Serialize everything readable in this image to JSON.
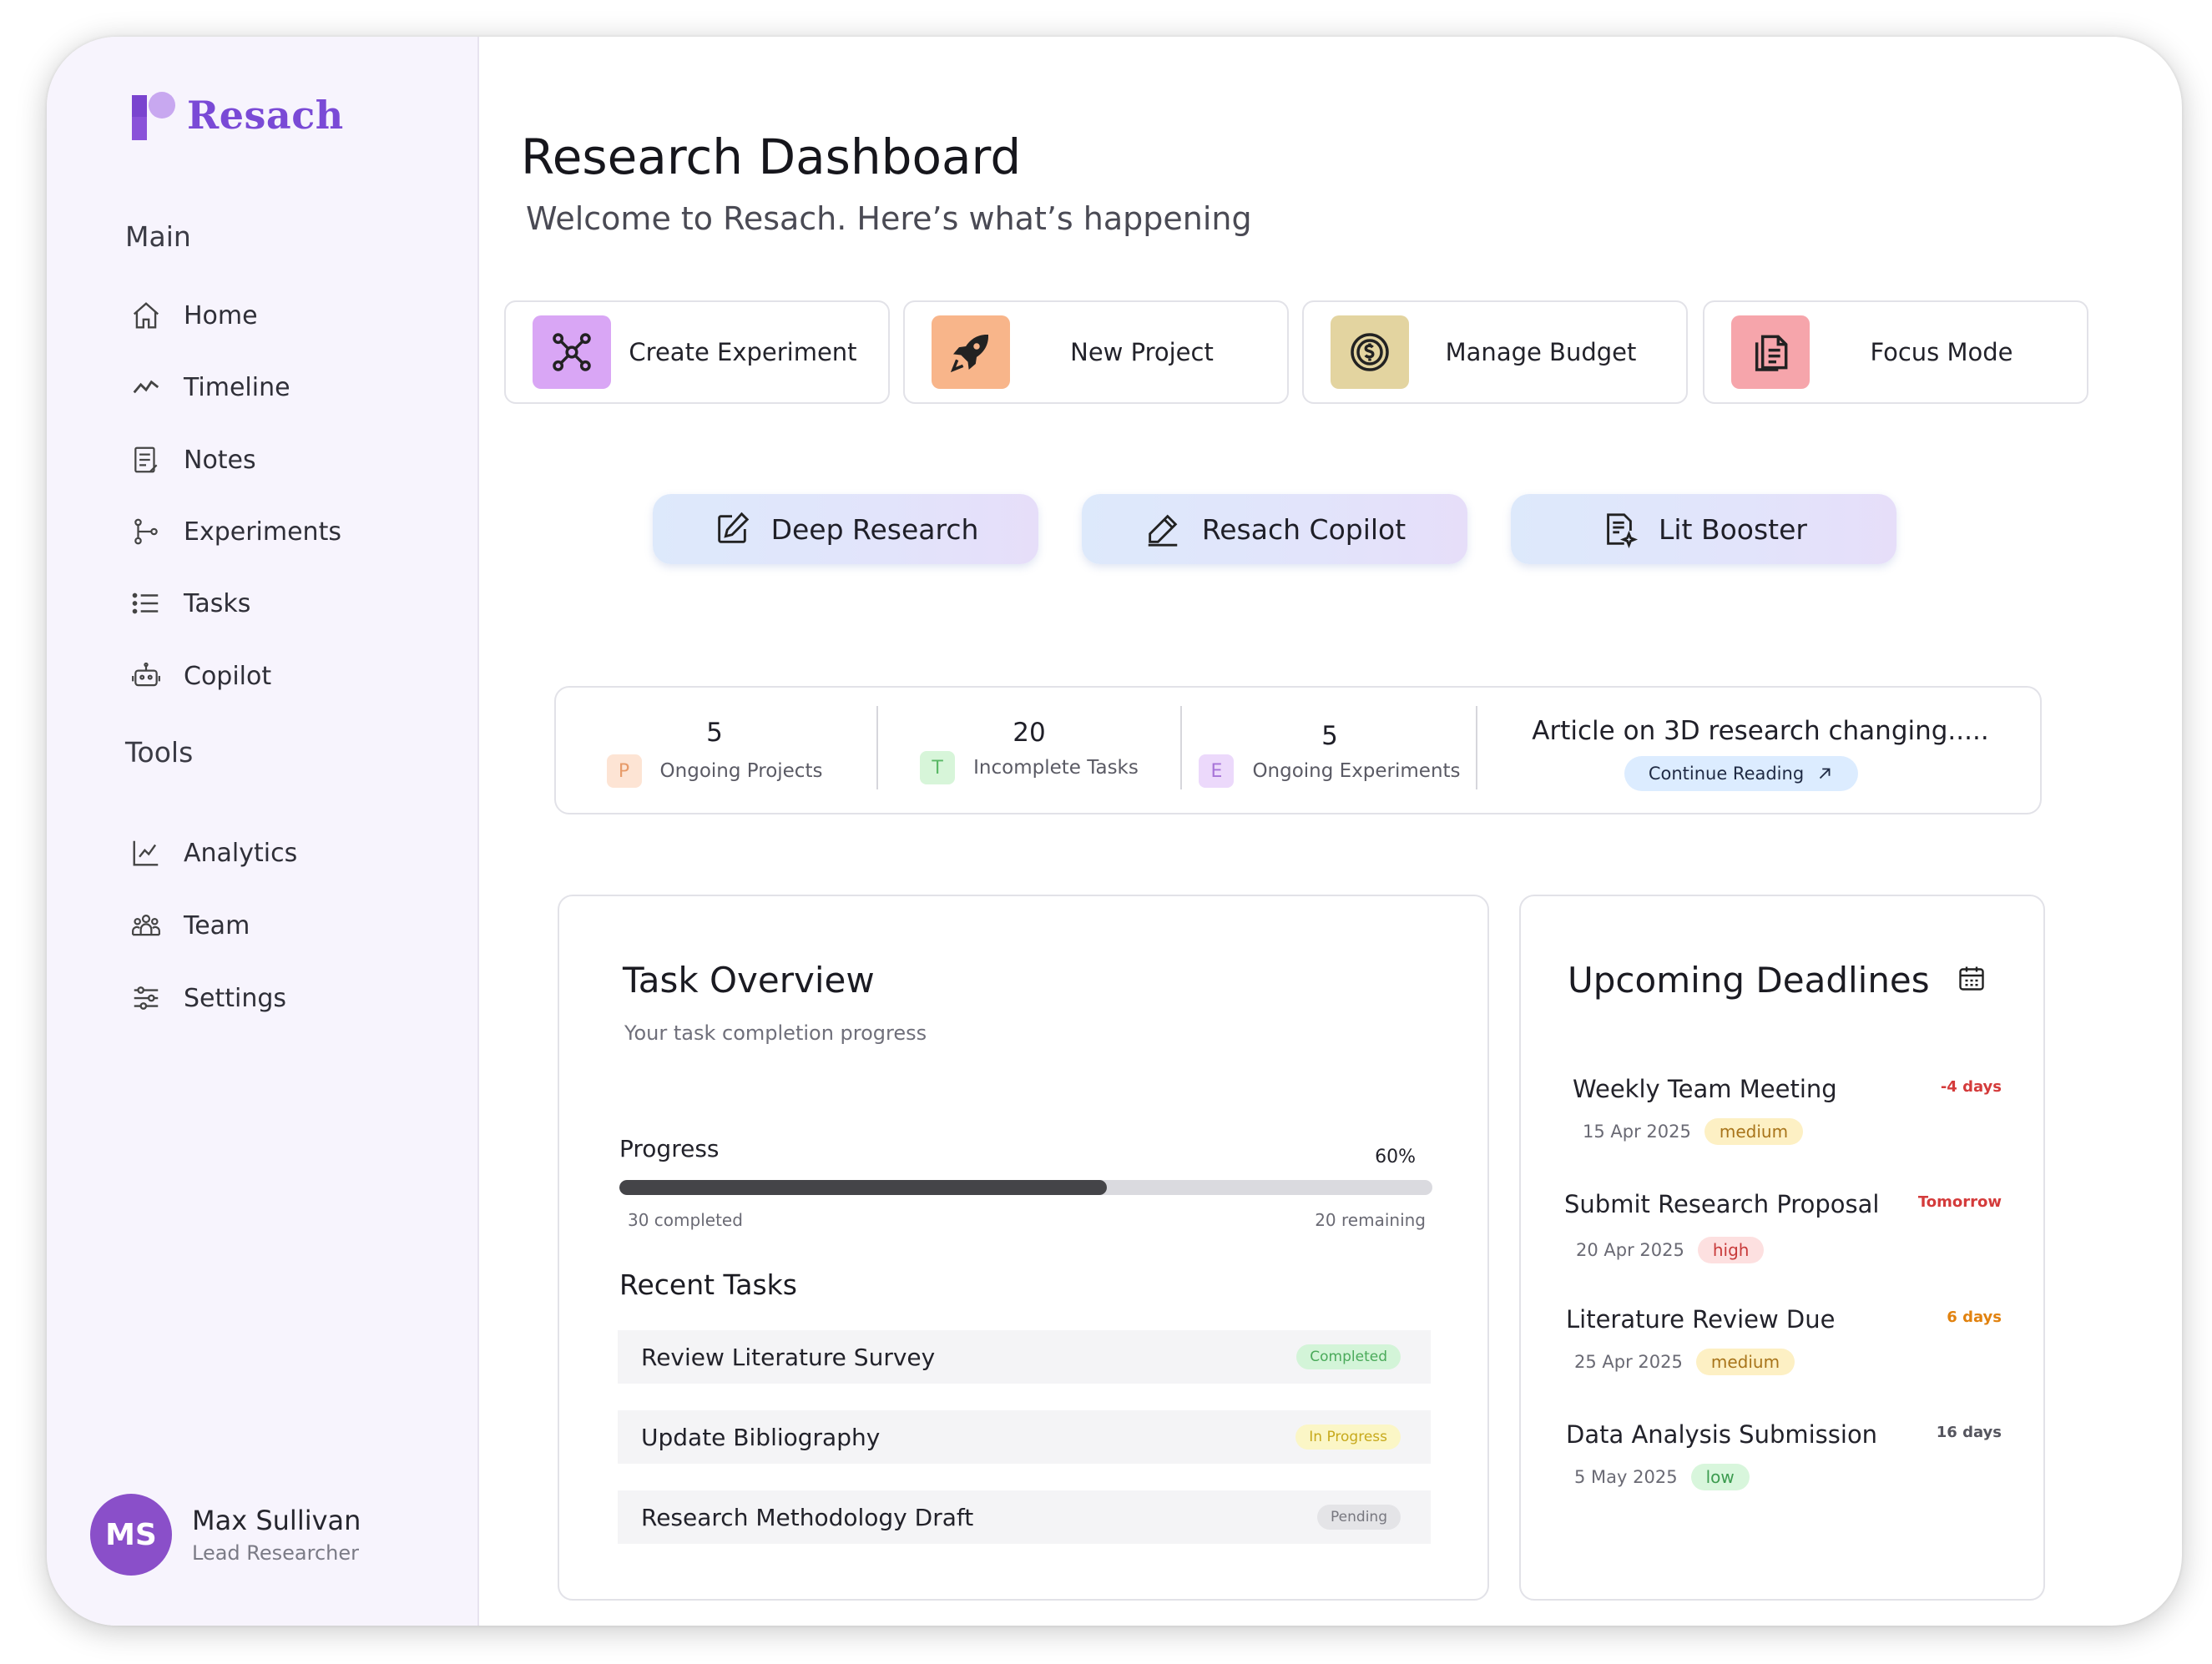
{
  "app": {
    "brand": "Resach"
  },
  "sidebar": {
    "main_label": "Main",
    "main_items": [
      {
        "label": "Home",
        "icon": "home-icon"
      },
      {
        "label": "Timeline",
        "icon": "trend-icon"
      },
      {
        "label": "Notes",
        "icon": "notes-icon"
      },
      {
        "label": "Experiments",
        "icon": "branch-icon"
      },
      {
        "label": "Tasks",
        "icon": "list-icon"
      },
      {
        "label": "Copilot",
        "icon": "robot-icon"
      }
    ],
    "tools_label": "Tools",
    "tools_items": [
      {
        "label": "Analytics",
        "icon": "chart-icon"
      },
      {
        "label": "Team",
        "icon": "team-icon"
      },
      {
        "label": "Settings",
        "icon": "sliders-icon"
      }
    ],
    "user": {
      "initials": "MS",
      "name": "Max Sullivan",
      "role": "Lead Researcher"
    }
  },
  "header": {
    "title": "Research Dashboard",
    "subtitle": "Welcome to Resach. Here’s what’s happening"
  },
  "quick_actions": [
    {
      "label": "Create Experiment",
      "icon": "molecule-icon",
      "color": "#d9a6f5"
    },
    {
      "label": "New Project",
      "icon": "rocket-icon",
      "color": "#f8b58a"
    },
    {
      "label": "Manage Budget",
      "icon": "budget-icon",
      "color": "#e3d4a0"
    },
    {
      "label": "Focus Mode",
      "icon": "document-icon",
      "color": "#f6a5ab"
    }
  ],
  "tools": [
    {
      "label": "Deep Research",
      "icon": "edit-icon"
    },
    {
      "label": "Resach Copilot",
      "icon": "pen-icon"
    },
    {
      "label": "Lit Booster",
      "icon": "doc-sparkle-icon"
    }
  ],
  "stats": [
    {
      "value": "5",
      "badge": "P",
      "label": "Ongoing Projects",
      "badge_bg": "#fde4d4",
      "badge_fg": "#e79b6a"
    },
    {
      "value": "20",
      "badge": "T",
      "label": "Incomplete Tasks",
      "badge_bg": "#d7f5d9",
      "badge_fg": "#5ab866"
    },
    {
      "value": "5",
      "badge": "E",
      "label": "Ongoing Experiments",
      "badge_bg": "#ecd9fb",
      "badge_fg": "#a774d8"
    }
  ],
  "article": {
    "title": "Article on 3D research changing.....",
    "button": "Continue Reading"
  },
  "task_overview": {
    "title": "Task Overview",
    "subtitle": "Your task completion progress",
    "progress_label": "Progress",
    "progress_value": 60,
    "progress_text": "60%",
    "completed_text": "30 completed",
    "remaining_text": "20 remaining",
    "recent_title": "Recent Tasks",
    "recent": [
      {
        "name": "Review Literature Survey",
        "status": "Completed",
        "bg": "#d3f4d8",
        "fg": "#4aaa5a"
      },
      {
        "name": "Update Bibliography",
        "status": "In Progress",
        "bg": "#fbf6c6",
        "fg": "#c7a91c"
      },
      {
        "name": "Research Methodology Draft",
        "status": "Pending",
        "bg": "#e4e4e7",
        "fg": "#77777f"
      }
    ]
  },
  "deadlines": {
    "title": "Upcoming Deadlines",
    "items": [
      {
        "name": "Weekly Team Meeting",
        "when": "-4 days",
        "when_color": "#d43b3b",
        "date": "15 Apr 2025",
        "priority": "medium",
        "prio_bg": "#fdf0c4",
        "prio_fg": "#a8741a"
      },
      {
        "name": "Submit Research Proposal",
        "when": "Tomorrow",
        "when_color": "#d43b3b",
        "date": "20 Apr 2025",
        "priority": "high",
        "prio_bg": "#fde0e0",
        "prio_fg": "#c83a3a"
      },
      {
        "name": "Literature Review Due",
        "when": "6 days",
        "when_color": "#e1820f",
        "date": "25 Apr 2025",
        "priority": "medium",
        "prio_bg": "#fdf0c4",
        "prio_fg": "#a8741a"
      },
      {
        "name": "Data Analysis Submission",
        "when": "16 days",
        "when_color": "#55555e",
        "date": "5 May 2025",
        "priority": "low",
        "prio_bg": "#d8f6dc",
        "prio_fg": "#3c9b4f"
      }
    ]
  }
}
